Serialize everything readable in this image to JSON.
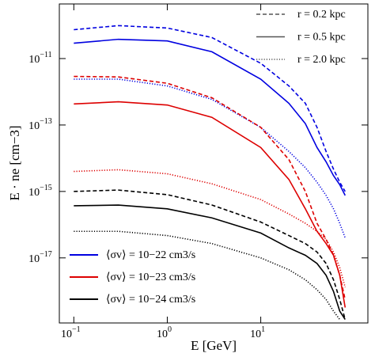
{
  "chart_data": {
    "type": "line",
    "x_label": "E [GeV]",
    "y_label": "E · ne [cm−3]",
    "xscale": "log",
    "yscale": "log",
    "xlim": [
      0.07,
      140
    ],
    "ylim": [
      1.1e-19,
      4.4e-10
    ],
    "xticks": [
      {
        "value": 0.1,
        "label": "10−1"
      },
      {
        "value": 1,
        "label": "100"
      },
      {
        "value": 10,
        "label": "101"
      }
    ],
    "yticks": [
      {
        "value": 1e-11,
        "label": "10−11"
      },
      {
        "value": 1e-13,
        "label": "10−13"
      },
      {
        "value": 1e-15,
        "label": "10−15"
      },
      {
        "value": 1e-17,
        "label": "10−17"
      }
    ],
    "style_legend": [
      {
        "label": "r = 0.2 kpc",
        "dash": "dashed"
      },
      {
        "label": "r = 0.5 kpc",
        "dash": "solid"
      },
      {
        "label": "r = 2.0 kpc",
        "dash": "dotted"
      }
    ],
    "color_legend": [
      {
        "label": "⟨σv⟩ = 10−22 cm3/s",
        "color": "#0000e0"
      },
      {
        "label": "⟨σv⟩ = 10−23 cm3/s",
        "color": "#dd0000"
      },
      {
        "label": "⟨σv⟩ = 10−24 cm3/s",
        "color": "#000000"
      }
    ],
    "x": [
      0.1,
      0.3,
      1,
      3,
      10,
      20,
      30,
      40,
      50,
      60,
      70,
      80
    ],
    "series": [
      {
        "color": "#0000e0",
        "dash": "dashed",
        "values": [
          7.4e-11,
          9.8e-11,
          8.3e-11,
          4.3e-11,
          7.2e-12,
          1.5e-12,
          4.5e-13,
          8.5e-14,
          1.6e-14,
          4.7e-15,
          1.9e-15,
          1e-15
        ]
      },
      {
        "color": "#0000e0",
        "dash": "solid",
        "values": [
          2.9e-11,
          3.8e-11,
          3.4e-11,
          1.6e-11,
          2.4e-12,
          4.5e-13,
          1.1e-13,
          2.1e-14,
          7.8e-15,
          3e-15,
          1.6e-15,
          7.6e-16
        ]
      },
      {
        "color": "#0000e0",
        "dash": "dotted",
        "values": [
          2.4e-12,
          2.4e-12,
          1.5e-12,
          5.9e-13,
          8.5e-14,
          1.6e-14,
          5.2e-15,
          1.9e-15,
          7.6e-16,
          3e-16,
          1.1e-16,
          4e-17
        ]
      },
      {
        "color": "#dd0000",
        "dash": "dashed",
        "values": [
          2.9e-12,
          2.8e-12,
          1.8e-12,
          6.6e-13,
          8.5e-14,
          9.1e-15,
          1e-15,
          1.1e-16,
          3.6e-17,
          1.2e-17,
          3e-18,
          5.6e-19
        ]
      },
      {
        "color": "#dd0000",
        "dash": "solid",
        "values": [
          4.3e-13,
          5e-13,
          4e-13,
          1.7e-13,
          2.1e-14,
          2.3e-15,
          3e-16,
          6.3e-17,
          2.7e-17,
          1.2e-17,
          3e-18,
          3.2e-19
        ]
      },
      {
        "color": "#dd0000",
        "dash": "dotted",
        "values": [
          4e-15,
          4.5e-15,
          3.4e-15,
          1.7e-15,
          5.7e-16,
          2.1e-16,
          1.1e-16,
          6.3e-17,
          3.6e-17,
          1.5e-17,
          5.1e-18,
          1.3e-18
        ]
      },
      {
        "color": "#000000",
        "dash": "dashed",
        "values": [
          1e-15,
          1.1e-15,
          8e-16,
          3.9e-16,
          1.2e-16,
          4.7e-17,
          2.7e-17,
          1.5e-17,
          6.8e-18,
          2.2e-18,
          5.6e-19,
          1.4e-19
        ]
      },
      {
        "color": "#000000",
        "dash": "solid",
        "values": [
          3.7e-16,
          3.9e-16,
          3e-16,
          1.6e-16,
          5.6e-17,
          2e-17,
          1.2e-17,
          6.8e-18,
          3e-18,
          9.8e-19,
          2.5e-19,
          1.4e-19
        ]
      },
      {
        "color": "#000000",
        "dash": "dotted",
        "values": [
          6.3e-17,
          6.3e-17,
          4.7e-17,
          2.7e-17,
          1e-17,
          4.4e-18,
          2.2e-18,
          1.1e-18,
          5.6e-19,
          2.5e-19,
          1.4e-19,
          null
        ]
      }
    ]
  }
}
